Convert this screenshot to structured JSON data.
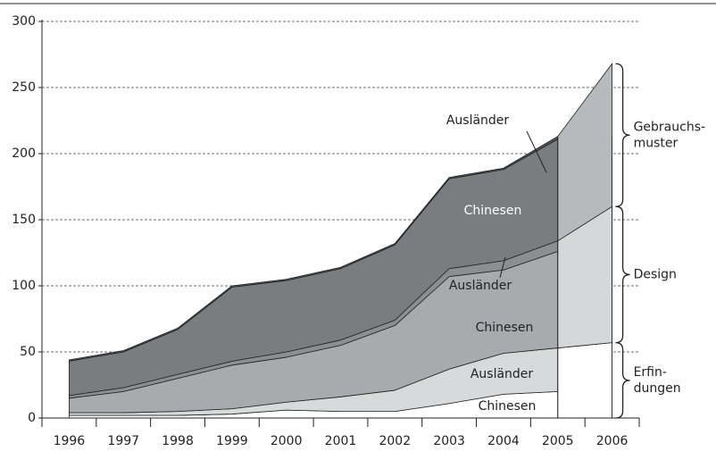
{
  "chart_data": {
    "type": "stacked_area",
    "categories": [
      "1996",
      "1997",
      "1998",
      "1999",
      "2000",
      "2001",
      "2002",
      "2003",
      "2004",
      "2005",
      "2006"
    ],
    "ylim": [
      0,
      300
    ],
    "yticks": [
      0,
      50,
      100,
      150,
      200,
      250,
      300
    ],
    "grid": true,
    "series": [
      {
        "name": "Chinesen",
        "color": "#ffffff",
        "values": [
          2,
          2,
          2,
          3,
          6,
          5,
          5,
          11,
          18,
          20,
          null
        ]
      },
      {
        "name": "Ausländer",
        "color": "#d8d9db",
        "values": [
          2,
          2,
          3,
          4,
          6,
          11,
          16,
          26,
          31,
          33,
          null
        ]
      },
      {
        "name": "Chinesen",
        "color": "#a9aaad",
        "values": [
          11,
          16,
          25,
          33,
          34,
          39,
          49,
          70,
          63,
          73,
          null
        ]
      },
      {
        "name": "Ausländer",
        "color": "#8d8e91",
        "values": [
          2,
          3,
          3,
          3,
          4,
          4,
          4,
          6,
          7,
          8,
          null
        ]
      },
      {
        "name": "Chinesen",
        "color": "#7a7c80",
        "values": [
          26,
          27,
          34,
          56,
          54,
          54,
          57,
          68,
          69,
          77,
          null
        ]
      },
      {
        "name": "Ausländer",
        "color": "#55575b",
        "values": [
          1,
          1,
          1,
          1,
          1,
          1,
          1,
          1,
          1,
          2,
          null
        ]
      },
      {
        "label": [
          "Erfin-",
          "dungen"
        ],
        "color": "#ffffff",
        "values": [
          null,
          null,
          null,
          null,
          null,
          null,
          null,
          null,
          null,
          null,
          57
        ]
      },
      {
        "label": [
          "Design"
        ],
        "color": "#d6d7d9",
        "values": [
          null,
          null,
          null,
          null,
          null,
          null,
          null,
          null,
          null,
          null,
          103
        ]
      },
      {
        "label": [
          "Gebrauchs-",
          "muster"
        ],
        "color": "#b8b9bc",
        "values": [
          null,
          null,
          null,
          null,
          null,
          null,
          null,
          null,
          null,
          null,
          108
        ]
      }
    ]
  }
}
